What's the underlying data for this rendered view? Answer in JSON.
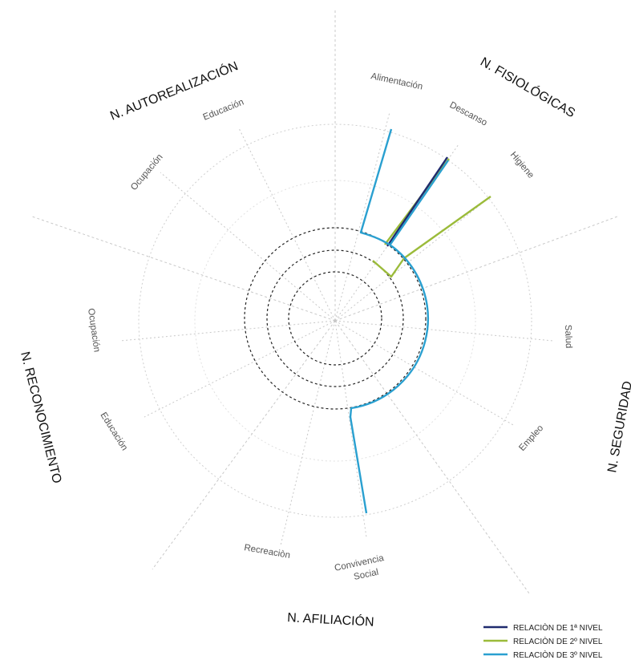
{
  "sectors": [
    {
      "label": "N. AUTOREALIZACIÓN"
    },
    {
      "label": "N. FISIOLÓGICAS"
    },
    {
      "label": "N. SEGURIDAD"
    },
    {
      "label": "N. AFILIACIÓN"
    },
    {
      "label": "N. RECONOCIMIENTO"
    }
  ],
  "needs": [
    {
      "label": "Alimentación"
    },
    {
      "label": "Descanso"
    },
    {
      "label": "Higiene"
    },
    {
      "label": "Salud"
    },
    {
      "label": "Empleo"
    },
    {
      "label": "Convivencia"
    },
    {
      "label": "Social"
    },
    {
      "label": "Recreaciòn"
    },
    {
      "label": "Educación"
    },
    {
      "label": "Ocupación"
    },
    {
      "label": "Ocupación"
    },
    {
      "label": "Educación"
    }
  ],
  "legend": [
    {
      "label": "RELACIÒN DE 1ª NIVEL",
      "color": "#1f2a6e"
    },
    {
      "label": "RELACIÒN DE 2º NIVEL",
      "color": "#9bbb3a"
    },
    {
      "label": "RELACIÒN DE 3º NIVEL",
      "color": "#2aa0d0"
    }
  ],
  "colors": {
    "level1": "#1f2a6e",
    "level2": "#9bbb3a",
    "level3": "#2aa0d0",
    "grid": "#c8c8c8",
    "rings": "#222222"
  }
}
